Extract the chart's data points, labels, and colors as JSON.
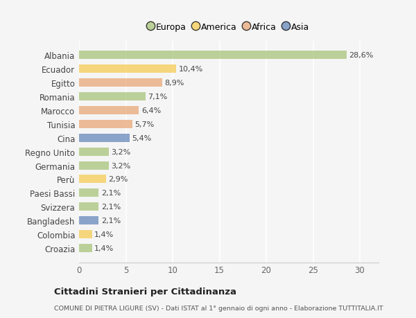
{
  "categories": [
    "Albania",
    "Ecuador",
    "Egitto",
    "Romania",
    "Marocco",
    "Tunisia",
    "Cina",
    "Regno Unito",
    "Germania",
    "Perù",
    "Paesi Bassi",
    "Svizzera",
    "Bangladesh",
    "Colombia",
    "Croazia"
  ],
  "values": [
    28.6,
    10.4,
    8.9,
    7.1,
    6.4,
    5.7,
    5.4,
    3.2,
    3.2,
    2.9,
    2.1,
    2.1,
    2.1,
    1.4,
    1.4
  ],
  "labels": [
    "28,6%",
    "10,4%",
    "8,9%",
    "7,1%",
    "6,4%",
    "5,7%",
    "5,4%",
    "3,2%",
    "3,2%",
    "2,9%",
    "2,1%",
    "2,1%",
    "2,1%",
    "1,4%",
    "1,4%"
  ],
  "continents": [
    "Europa",
    "America",
    "Africa",
    "Europa",
    "Africa",
    "Africa",
    "Asia",
    "Europa",
    "Europa",
    "America",
    "Europa",
    "Europa",
    "Asia",
    "America",
    "Europa"
  ],
  "colors": {
    "Europa": "#a8c47a",
    "America": "#f5cc55",
    "Africa": "#e8a878",
    "Asia": "#6688bb"
  },
  "xlim": [
    0,
    32
  ],
  "xticks": [
    0,
    5,
    10,
    15,
    20,
    25,
    30
  ],
  "title": "Cittadini Stranieri per Cittadinanza",
  "subtitle": "COMUNE DI PIETRA LIGURE (SV) - Dati ISTAT al 1° gennaio di ogni anno - Elaborazione TUTTITALIA.IT",
  "bg_color": "#f5f5f5",
  "grid_color": "#ffffff",
  "bar_alpha": 0.75,
  "bar_height": 0.6,
  "label_fontsize": 8,
  "ytick_fontsize": 8.5,
  "xtick_fontsize": 8.5
}
